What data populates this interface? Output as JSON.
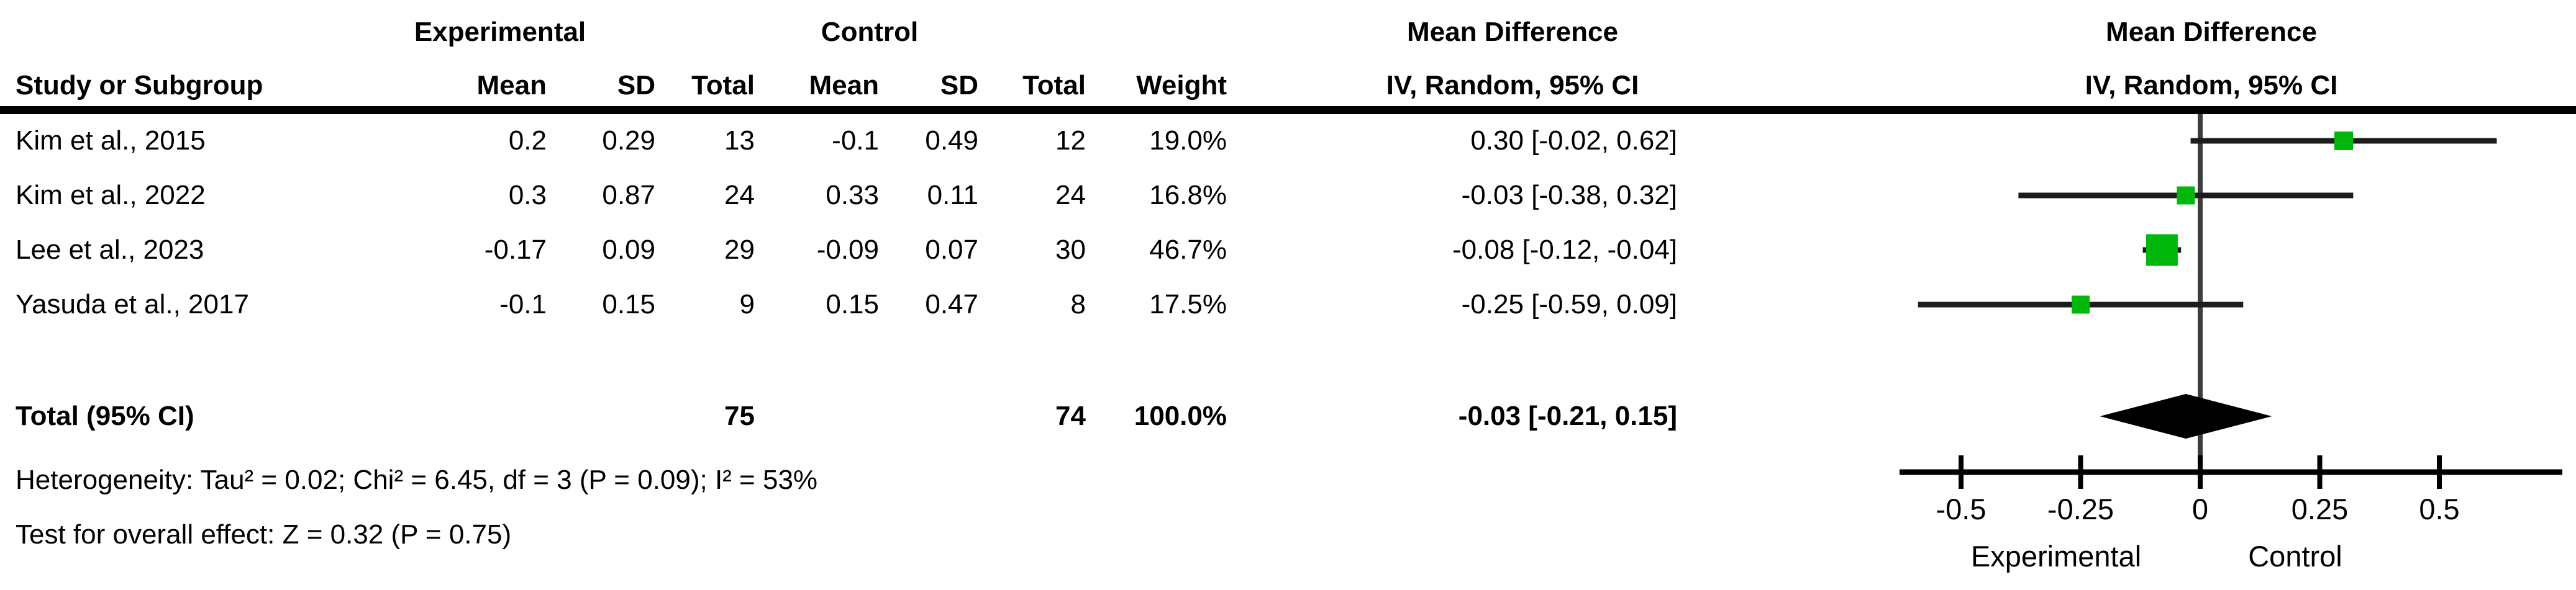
{
  "chart_data": {
    "type": "forest",
    "effect_measure": "Mean Difference",
    "model_label": "IV, Random, 95% CI",
    "columns": {
      "study": "Study or Subgroup",
      "group1": "Experimental",
      "group2": "Control",
      "mean1": "Mean",
      "sd1": "SD",
      "total1": "Total",
      "mean2": "Mean",
      "sd2": "SD",
      "total2": "Total",
      "weight": "Weight",
      "md_text_header": "Mean Difference",
      "ci_text_header": "IV, Random, 95% CI",
      "md_plot_header": "Mean Difference",
      "ci_plot_header": "IV, Random, 95% CI"
    },
    "studies": [
      {
        "name": "Kim et al., 2015",
        "exp_mean": "0.2",
        "exp_sd": "0.29",
        "exp_total": "13",
        "ctl_mean": "-0.1",
        "ctl_sd": "0.49",
        "ctl_total": "12",
        "weight": "19.0%",
        "ci_text": "0.30 [-0.02, 0.62]",
        "est": 0.3,
        "lo": -0.02,
        "hi": 0.62,
        "weight_pct": 19.0
      },
      {
        "name": "Kim et al., 2022",
        "exp_mean": "0.3",
        "exp_sd": "0.87",
        "exp_total": "24",
        "ctl_mean": "0.33",
        "ctl_sd": "0.11",
        "ctl_total": "24",
        "weight": "16.8%",
        "ci_text": "-0.03 [-0.38, 0.32]",
        "est": -0.03,
        "lo": -0.38,
        "hi": 0.32,
        "weight_pct": 16.8
      },
      {
        "name": "Lee et al., 2023",
        "exp_mean": "-0.17",
        "exp_sd": "0.09",
        "exp_total": "29",
        "ctl_mean": "-0.09",
        "ctl_sd": "0.07",
        "ctl_total": "30",
        "weight": "46.7%",
        "ci_text": "-0.08 [-0.12, -0.04]",
        "est": -0.08,
        "lo": -0.12,
        "hi": -0.04,
        "weight_pct": 46.7
      },
      {
        "name": "Yasuda et al., 2017",
        "exp_mean": "-0.1",
        "exp_sd": "0.15",
        "exp_total": "9",
        "ctl_mean": "0.15",
        "ctl_sd": "0.47",
        "ctl_total": "8",
        "weight": "17.5%",
        "ci_text": "-0.25 [-0.59, 0.09]",
        "est": -0.25,
        "lo": -0.59,
        "hi": 0.09,
        "weight_pct": 17.5
      }
    ],
    "total": {
      "label": "Total (95% CI)",
      "exp_total": "75",
      "ctl_total": "74",
      "weight": "100.0%",
      "ci_text": "-0.03 [-0.21, 0.15]",
      "est": -0.03,
      "lo": -0.21,
      "hi": 0.15
    },
    "footnotes": [
      "Heterogeneity: Tau² = 0.02; Chi² = 6.45, df = 3 (P = 0.09); I² = 53%",
      "Test for overall effect: Z = 0.32 (P = 0.75)"
    ],
    "axis": {
      "ticks": [
        -0.5,
        -0.25,
        0,
        0.25,
        0.5
      ],
      "tick_labels": [
        "-0.5",
        "-0.25",
        "0",
        "0.25",
        "0.5"
      ],
      "xlim": [
        -0.63,
        0.76
      ],
      "label_left": "Experimental",
      "label_right": "Control"
    },
    "colors": {
      "marker_green": "#00b80c",
      "ci_line": "#1c1c1c",
      "diamond": "#000000",
      "axis": "#000000",
      "zero_line": "#3d3d3d",
      "underline": "#000000"
    }
  }
}
